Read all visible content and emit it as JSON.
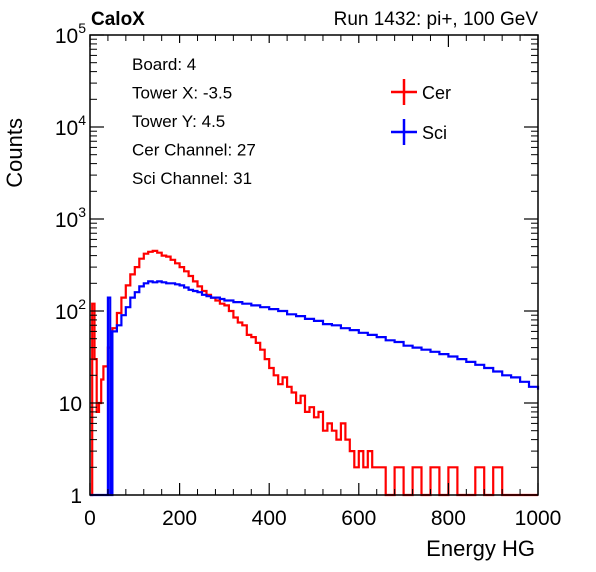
{
  "header": {
    "left": "CaloX",
    "right": "Run 1432: pi+, 100 GeV"
  },
  "info_box": [
    "Board: 4",
    "Tower X: -3.5",
    "Tower Y: 4.5",
    "Cer Channel: 27",
    "Sci Channel: 31"
  ],
  "colors": {
    "cer": "#ff0000",
    "sci": "#0000ff"
  },
  "chart_data": {
    "type": "line",
    "title": "",
    "xlabel": "Energy HG",
    "ylabel": "Counts",
    "xlim": [
      0,
      1000
    ],
    "ylim": [
      1,
      100000
    ],
    "yscale": "log",
    "xticks": [
      "0",
      "200",
      "400",
      "600",
      "800",
      "1000"
    ],
    "yticks": [
      {
        "base": "1",
        "exp": ""
      },
      {
        "base": "10",
        "exp": ""
      },
      {
        "base": "10",
        "exp": "2"
      },
      {
        "base": "10",
        "exp": "3"
      },
      {
        "base": "10",
        "exp": "4"
      },
      {
        "base": "10",
        "exp": "5"
      }
    ],
    "legend_position": "top-right",
    "series": [
      {
        "name": "Cer",
        "color": "#ff0000",
        "points": [
          [
            0,
            1
          ],
          [
            5,
            120
          ],
          [
            10,
            30
          ],
          [
            15,
            8
          ],
          [
            20,
            10
          ],
          [
            25,
            18
          ],
          [
            30,
            25
          ],
          [
            40,
            40
          ],
          [
            50,
            65
          ],
          [
            60,
            95
          ],
          [
            70,
            140
          ],
          [
            80,
            190
          ],
          [
            90,
            250
          ],
          [
            100,
            300
          ],
          [
            110,
            370
          ],
          [
            120,
            420
          ],
          [
            130,
            440
          ],
          [
            140,
            450
          ],
          [
            150,
            430
          ],
          [
            160,
            400
          ],
          [
            170,
            390
          ],
          [
            180,
            360
          ],
          [
            190,
            330
          ],
          [
            200,
            300
          ],
          [
            210,
            270
          ],
          [
            220,
            240
          ],
          [
            230,
            210
          ],
          [
            240,
            185
          ],
          [
            250,
            165
          ],
          [
            260,
            150
          ],
          [
            270,
            140
          ],
          [
            280,
            130
          ],
          [
            290,
            120
          ],
          [
            300,
            115
          ],
          [
            310,
            100
          ],
          [
            320,
            85
          ],
          [
            330,
            75
          ],
          [
            340,
            70
          ],
          [
            350,
            55
          ],
          [
            360,
            52
          ],
          [
            370,
            45
          ],
          [
            380,
            38
          ],
          [
            390,
            30
          ],
          [
            400,
            24
          ],
          [
            410,
            20
          ],
          [
            420,
            16
          ],
          [
            430,
            19
          ],
          [
            440,
            15
          ],
          [
            450,
            13
          ],
          [
            460,
            10
          ],
          [
            470,
            12
          ],
          [
            480,
            8
          ],
          [
            490,
            9
          ],
          [
            500,
            7
          ],
          [
            510,
            8
          ],
          [
            520,
            5
          ],
          [
            530,
            6
          ],
          [
            540,
            5
          ],
          [
            550,
            4
          ],
          [
            560,
            6
          ],
          [
            570,
            4
          ],
          [
            580,
            3
          ],
          [
            590,
            2
          ],
          [
            600,
            3
          ],
          [
            610,
            2
          ],
          [
            620,
            3
          ],
          [
            630,
            2
          ],
          [
            640,
            2
          ],
          [
            650,
            2
          ],
          [
            660,
            1
          ],
          [
            680,
            2
          ],
          [
            700,
            1
          ],
          [
            720,
            2
          ],
          [
            740,
            1
          ],
          [
            760,
            2
          ],
          [
            780,
            1
          ],
          [
            800,
            2
          ],
          [
            820,
            1
          ],
          [
            840,
            1
          ],
          [
            860,
            2
          ],
          [
            880,
            1
          ],
          [
            900,
            2
          ],
          [
            920,
            1
          ],
          [
            940,
            1
          ],
          [
            960,
            1
          ],
          [
            980,
            1
          ],
          [
            1000,
            1
          ]
        ]
      },
      {
        "name": "Sci",
        "color": "#0000ff",
        "points": [
          [
            0,
            1
          ],
          [
            35,
            1
          ],
          [
            40,
            140
          ],
          [
            45,
            1
          ],
          [
            50,
            60
          ],
          [
            60,
            70
          ],
          [
            70,
            90
          ],
          [
            80,
            110
          ],
          [
            90,
            140
          ],
          [
            100,
            160
          ],
          [
            110,
            185
          ],
          [
            120,
            200
          ],
          [
            130,
            210
          ],
          [
            140,
            205
          ],
          [
            150,
            210
          ],
          [
            160,
            205
          ],
          [
            170,
            200
          ],
          [
            180,
            200
          ],
          [
            190,
            195
          ],
          [
            200,
            190
          ],
          [
            210,
            180
          ],
          [
            220,
            170
          ],
          [
            230,
            165
          ],
          [
            240,
            160
          ],
          [
            250,
            150
          ],
          [
            260,
            145
          ],
          [
            270,
            140
          ],
          [
            280,
            140
          ],
          [
            290,
            135
          ],
          [
            300,
            130
          ],
          [
            320,
            125
          ],
          [
            340,
            120
          ],
          [
            360,
            115
          ],
          [
            380,
            110
          ],
          [
            400,
            105
          ],
          [
            420,
            100
          ],
          [
            440,
            92
          ],
          [
            460,
            88
          ],
          [
            480,
            82
          ],
          [
            500,
            78
          ],
          [
            520,
            72
          ],
          [
            540,
            70
          ],
          [
            560,
            65
          ],
          [
            580,
            62
          ],
          [
            600,
            58
          ],
          [
            620,
            55
          ],
          [
            640,
            52
          ],
          [
            660,
            48
          ],
          [
            680,
            46
          ],
          [
            700,
            42
          ],
          [
            720,
            40
          ],
          [
            740,
            38
          ],
          [
            760,
            36
          ],
          [
            780,
            34
          ],
          [
            800,
            32
          ],
          [
            820,
            30
          ],
          [
            840,
            28
          ],
          [
            860,
            26
          ],
          [
            880,
            24
          ],
          [
            900,
            22
          ],
          [
            920,
            20
          ],
          [
            940,
            19
          ],
          [
            960,
            17
          ],
          [
            980,
            15
          ],
          [
            1000,
            14
          ]
        ]
      }
    ]
  }
}
